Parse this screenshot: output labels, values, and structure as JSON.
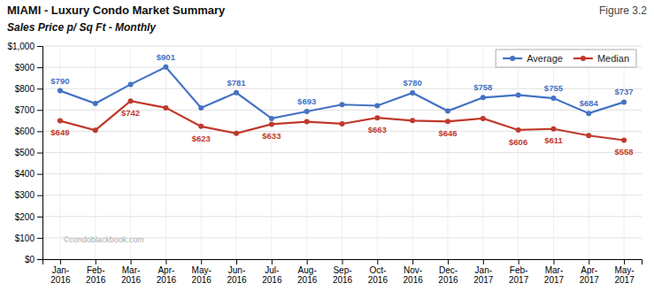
{
  "chart_data": {
    "type": "line",
    "title": "MIAMI - Luxury Condo Market Summary",
    "subtitle": "Sales Price  p/ Sq Ft - Monthly",
    "annotations": [
      "Figure 3.2",
      "©condoblackbook.com"
    ],
    "categories": [
      "Jan-\n2016",
      "Feb-\n2016",
      "Mar-\n2016",
      "Apr-\n2016",
      "May-\n2016",
      "Jun-\n2016",
      "Jul-\n2016",
      "Aug-\n2016",
      "Sep-\n2016",
      "Oct-\n2016",
      "Nov-\n2016",
      "Dec-\n2016",
      "Jan-\n2017",
      "Feb-\n2017",
      "Mar-\n2017",
      "Apr-\n2017",
      "May-\n2017"
    ],
    "series": [
      {
        "name": "Average",
        "color": "#4472C4",
        "marker": "circle",
        "values": [
          790,
          730,
          820,
          901,
          710,
          781,
          660,
          693,
          725,
          720,
          780,
          695,
          758,
          770,
          755,
          684,
          737
        ],
        "value_labels": [
          "$790",
          null,
          null,
          "$901",
          null,
          "$781",
          null,
          "$693",
          null,
          null,
          "$780",
          null,
          "$758",
          null,
          "$755",
          "$684",
          "$737"
        ]
      },
      {
        "name": "Median",
        "color": "#C0392B",
        "marker": "circle",
        "values": [
          649,
          605,
          742,
          710,
          623,
          590,
          633,
          645,
          635,
          663,
          650,
          646,
          660,
          606,
          611,
          580,
          558
        ],
        "value_labels": [
          "$649",
          null,
          "$742",
          null,
          "$623",
          null,
          "$633",
          null,
          null,
          "$663",
          null,
          "$646",
          null,
          "$606",
          "$611",
          null,
          "$558"
        ]
      }
    ],
    "ylim": [
      0,
      1000
    ],
    "yticks": [
      {
        "value": 0,
        "label": "$0"
      },
      {
        "value": 100,
        "label": "$100"
      },
      {
        "value": 200,
        "label": "$200"
      },
      {
        "value": 300,
        "label": "$300"
      },
      {
        "value": 400,
        "label": "$400"
      },
      {
        "value": 500,
        "label": "$500"
      },
      {
        "value": 600,
        "label": "$600"
      },
      {
        "value": 700,
        "label": "$700"
      },
      {
        "value": 800,
        "label": "$800"
      },
      {
        "value": 900,
        "label": "$900"
      },
      {
        "value": 1000,
        "label": "$1,000"
      }
    ],
    "grid": true,
    "legend": "top-right",
    "data_labels": true
  }
}
